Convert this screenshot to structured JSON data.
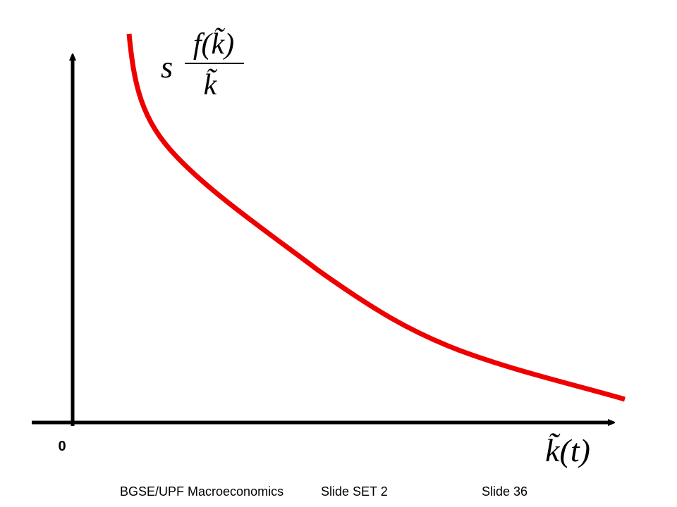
{
  "curve_label": {
    "coefficient": "s",
    "numerator": "f(k̃)",
    "denominator": "k̃"
  },
  "axes": {
    "origin_label": "0",
    "x_label": "k̃(t)"
  },
  "footer": {
    "course": "BGSE/UPF Macroeconomics",
    "set": "Slide SET 2",
    "slide": "Slide 36"
  }
}
